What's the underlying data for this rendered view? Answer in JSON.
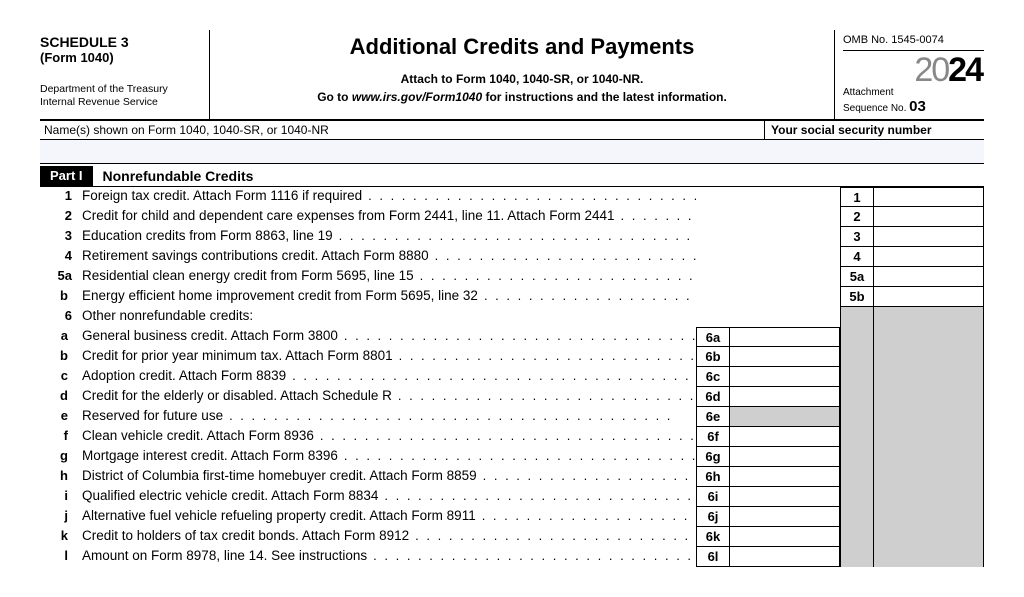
{
  "header": {
    "schedule": "SCHEDULE 3",
    "form": "(Form 1040)",
    "dept1": "Department of the Treasury",
    "dept2": "Internal Revenue Service",
    "title": "Additional Credits and Payments",
    "sub1": "Attach to Form 1040, 1040-SR, or 1040-NR.",
    "sub2_pre": "Go to ",
    "sub2_em": "www.irs.gov/Form1040",
    "sub2_post": " for instructions and the latest information.",
    "omb": "OMB No. 1545-0074",
    "year20": "20",
    "year24": "24",
    "attach": "Attachment",
    "seq_label": "Sequence No. ",
    "seq_num": "03"
  },
  "names_label": "Name(s) shown on Form 1040, 1040-SR, or 1040-NR",
  "ssn_label": "Your social security number",
  "part": {
    "num": "Part I",
    "title": "Nonrefundable Credits"
  },
  "lines": {
    "l1": {
      "n": "1",
      "t": "Foreign tax credit. Attach Form 1116 if required",
      "r": "1"
    },
    "l2": {
      "n": "2",
      "t": "Credit for child and dependent care expenses from Form 2441, line 11. Attach Form 2441",
      "r": "2"
    },
    "l3": {
      "n": "3",
      "t": "Education credits from Form 8863, line 19",
      "r": "3"
    },
    "l4": {
      "n": "4",
      "t": "Retirement savings contributions credit. Attach Form 8880",
      "r": "4"
    },
    "l5a": {
      "n": "5a",
      "t": "Residential clean energy credit from Form 5695, line 15",
      "r": "5a"
    },
    "l5b": {
      "n": "b",
      "t": "Energy efficient home improvement credit from Form 5695, line 32",
      "r": "5b"
    },
    "l6": {
      "n": "6",
      "t": "Other nonrefundable credits:"
    },
    "l6a": {
      "n": "a",
      "t": "General business credit. Attach Form 3800",
      "m": "6a"
    },
    "l6b": {
      "n": "b",
      "t": "Credit for prior year minimum tax. Attach Form 8801",
      "m": "6b"
    },
    "l6c": {
      "n": "c",
      "t": "Adoption credit. Attach Form 8839",
      "m": "6c"
    },
    "l6d": {
      "n": "d",
      "t": "Credit for the elderly or disabled. Attach Schedule R",
      "m": "6d"
    },
    "l6e": {
      "n": "e",
      "t": "Reserved for future use",
      "m": "6e"
    },
    "l6f": {
      "n": "f",
      "t": "Clean vehicle credit. Attach Form 8936",
      "m": "6f"
    },
    "l6g": {
      "n": "g",
      "t": "Mortgage interest credit. Attach Form 8396",
      "m": "6g"
    },
    "l6h": {
      "n": "h",
      "t": "District of Columbia first-time homebuyer credit. Attach Form 8859",
      "m": "6h"
    },
    "l6i": {
      "n": "i",
      "t": "Qualified electric vehicle credit. Attach Form 8834",
      "m": "6i"
    },
    "l6j": {
      "n": "j",
      "t": "Alternative fuel vehicle refueling property credit. Attach Form 8911",
      "m": "6j"
    },
    "l6k": {
      "n": "k",
      "t": "Credit to holders of tax credit bonds. Attach Form 8912",
      "m": "6k"
    },
    "l6l": {
      "n": "l",
      "t": "Amount on Form 8978, line 14. See instructions",
      "m": "6l"
    }
  }
}
